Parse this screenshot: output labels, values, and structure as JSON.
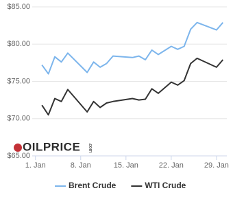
{
  "chart_data": {
    "type": "line",
    "x": [
      2,
      3,
      4,
      5,
      6,
      9,
      10,
      11,
      12,
      13,
      16,
      17,
      18,
      19,
      20,
      22,
      23,
      24,
      25,
      26,
      29,
      30
    ],
    "series": [
      {
        "name": "Brent Crude",
        "color": "#7cb5ec",
        "values": [
          77.2,
          76.0,
          78.3,
          77.6,
          78.8,
          76.2,
          77.6,
          76.9,
          77.4,
          78.4,
          78.2,
          78.4,
          77.9,
          79.2,
          78.6,
          79.7,
          79.3,
          79.7,
          82.0,
          82.9,
          81.9,
          82.9
        ]
      },
      {
        "name": "WTI Crude",
        "color": "#333333",
        "values": [
          71.8,
          70.5,
          72.7,
          72.3,
          73.9,
          70.9,
          72.3,
          71.5,
          72.1,
          72.3,
          72.7,
          72.5,
          72.6,
          74.0,
          73.4,
          74.9,
          74.5,
          75.1,
          77.4,
          78.1,
          76.9,
          77.9
        ]
      }
    ],
    "xlim": [
      0.5,
      30.6
    ],
    "xticks": [
      {
        "value": 1,
        "label": "1. Jan"
      },
      {
        "value": 8,
        "label": "8. Jan"
      },
      {
        "value": 15,
        "label": "15. Jan"
      },
      {
        "value": 22,
        "label": "22. Jan"
      },
      {
        "value": 29,
        "label": "29. Jan"
      }
    ],
    "ylim": [
      65,
      85
    ],
    "yticks": [
      {
        "value": 65,
        "label": "$65.00"
      },
      {
        "value": 70,
        "label": "$70.00"
      },
      {
        "value": 75,
        "label": "$75.00"
      },
      {
        "value": 80,
        "label": "$80.00"
      },
      {
        "value": 85,
        "label": "$85.00"
      }
    ],
    "grid": true,
    "legend": "bottom",
    "watermark": {
      "brand": "OILPRICE",
      "suffix": ".com"
    }
  }
}
